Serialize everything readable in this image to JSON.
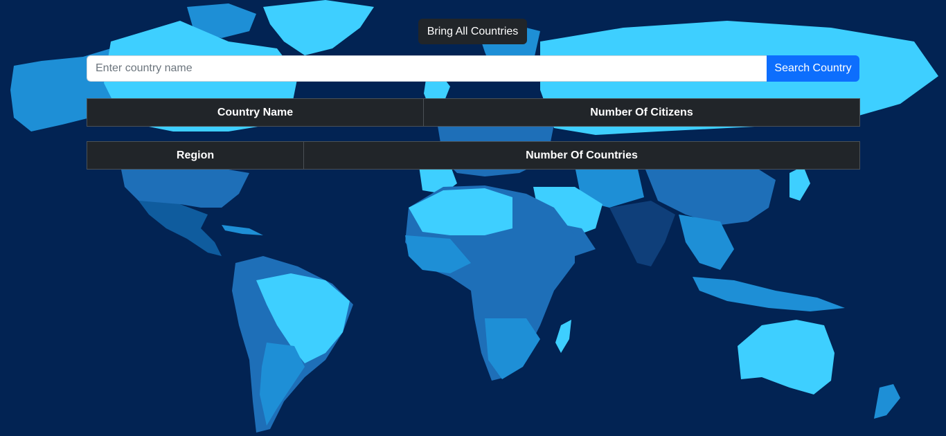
{
  "toolbar": {
    "bring_all_label": "Bring All Countries"
  },
  "search": {
    "placeholder": "Enter country name",
    "value": "",
    "button_label": "Search Country"
  },
  "countries_table": {
    "headers": [
      "Country Name",
      "Number Of Citizens"
    ]
  },
  "regions_table": {
    "headers": [
      "Region",
      "Number Of Countries"
    ]
  },
  "colors": {
    "background": "#022353",
    "land_light": "#3ecfff",
    "land_mid": "#1e8fd6",
    "land_dark": "#0f5c9e",
    "table_bg": "#212529",
    "primary_button": "#0d6efd"
  },
  "icons": [
    "world-map-background"
  ]
}
